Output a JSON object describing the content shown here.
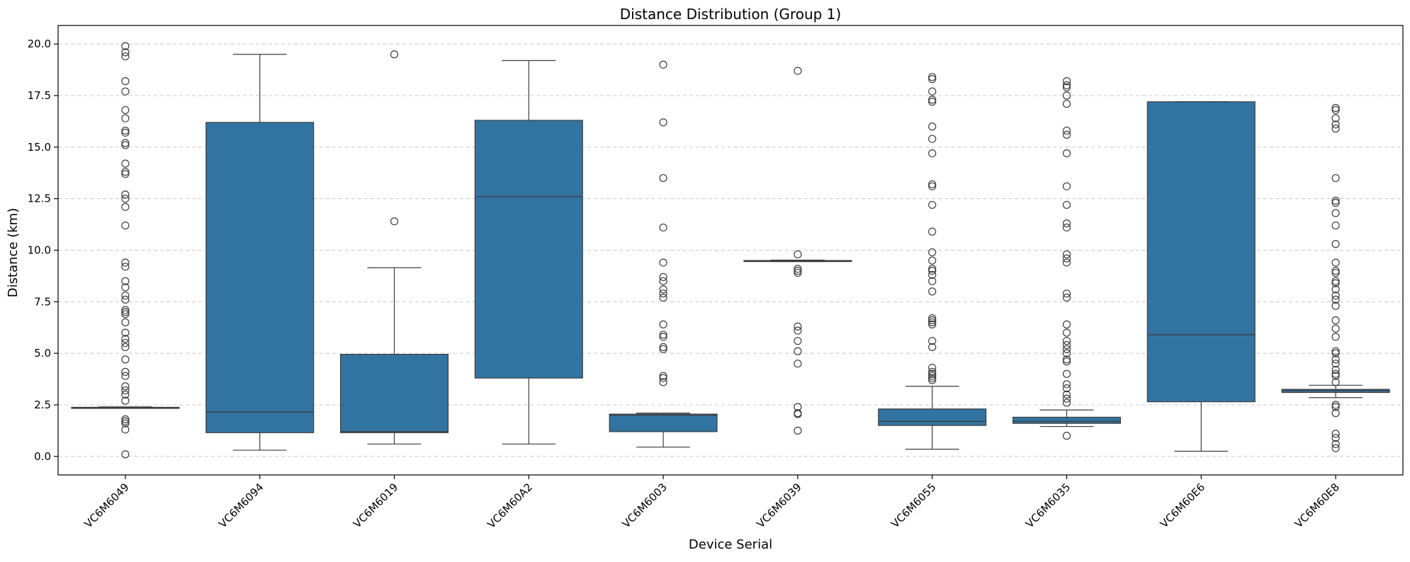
{
  "chart_data": {
    "type": "box",
    "title": "Distance Distribution (Group 1)",
    "xlabel": "Device Serial",
    "ylabel": "Distance (km)",
    "ylim": [
      -0.9,
      20.9
    ],
    "yticks": [
      0.0,
      2.5,
      5.0,
      7.5,
      10.0,
      12.5,
      15.0,
      17.5,
      20.0
    ],
    "ytick_labels": [
      "0.0",
      "2.5",
      "5.0",
      "7.5",
      "10.0",
      "12.5",
      "15.0",
      "17.5",
      "20.0"
    ],
    "grid": "horizontal dashed",
    "box_color": "#3274a1",
    "line_color": "#3d3d3d",
    "categories": [
      "VC6M6049",
      "VC6M6094",
      "VC6M6019",
      "VC6M60A2",
      "VC6M6003",
      "VC6M6039",
      "VC6M6055",
      "VC6M6035",
      "VC6M60E6",
      "VC6M60E8"
    ],
    "boxes": [
      {
        "category": "VC6M6049",
        "whisker_low": 2.35,
        "q1": 2.35,
        "median": 2.36,
        "q3": 2.38,
        "whisker_high": 2.4,
        "outliers": [
          19.9,
          19.6,
          19.4,
          18.2,
          17.7,
          16.8,
          16.4,
          15.8,
          15.7,
          15.2,
          15.1,
          14.2,
          13.8,
          13.7,
          12.7,
          12.5,
          12.1,
          11.2,
          9.4,
          9.2,
          8.5,
          8.2,
          7.8,
          7.6,
          7.1,
          7.0,
          6.9,
          6.5,
          6.0,
          5.7,
          5.5,
          5.3,
          4.7,
          4.1,
          3.9,
          3.4,
          3.2,
          3.0,
          2.7,
          1.8,
          1.7,
          1.6,
          1.3,
          0.1
        ]
      },
      {
        "category": "VC6M6094",
        "whisker_low": 0.3,
        "q1": 1.15,
        "median": 2.15,
        "q3": 16.2,
        "whisker_high": 19.5,
        "outliers": []
      },
      {
        "category": "VC6M6019",
        "whisker_low": 0.6,
        "q1": 1.15,
        "median": 1.2,
        "q3": 4.95,
        "whisker_high": 9.15,
        "outliers": [
          19.5,
          11.4
        ]
      },
      {
        "category": "VC6M60A2",
        "whisker_low": 0.6,
        "q1": 3.8,
        "median": 12.6,
        "q3": 16.3,
        "whisker_high": 19.2,
        "outliers": []
      },
      {
        "category": "VC6M6003",
        "whisker_low": 0.45,
        "q1": 1.2,
        "median": 2.0,
        "q3": 2.05,
        "whisker_high": 2.1,
        "outliers": [
          19.0,
          16.2,
          13.5,
          11.1,
          9.4,
          8.7,
          8.5,
          8.1,
          7.9,
          7.7,
          6.4,
          5.9,
          5.8,
          5.3,
          5.2,
          3.9,
          3.8,
          3.6
        ]
      },
      {
        "category": "VC6M6039",
        "whisker_low": 9.45,
        "q1": 9.47,
        "median": 9.48,
        "q3": 9.5,
        "whisker_high": 9.52,
        "outliers": [
          18.7,
          9.8,
          9.1,
          9.0,
          8.9,
          6.3,
          6.1,
          5.6,
          5.1,
          4.5,
          2.4,
          2.1,
          2.05,
          1.25
        ]
      },
      {
        "category": "VC6M6055",
        "whisker_low": 0.35,
        "q1": 1.5,
        "median": 1.7,
        "q3": 2.3,
        "whisker_high": 3.4,
        "outliers": [
          18.4,
          18.3,
          17.7,
          17.3,
          17.2,
          16.0,
          15.4,
          14.7,
          13.2,
          13.1,
          12.2,
          10.9,
          9.9,
          9.5,
          9.1,
          9.0,
          8.8,
          8.5,
          8.0,
          6.7,
          6.6,
          6.5,
          6.4,
          5.6,
          5.3,
          4.3,
          4.1,
          4.0,
          3.9,
          3.8,
          3.7
        ]
      },
      {
        "category": "VC6M6035",
        "whisker_low": 1.45,
        "q1": 1.6,
        "median": 1.7,
        "q3": 1.9,
        "whisker_high": 2.25,
        "outliers": [
          18.2,
          18.0,
          17.9,
          17.5,
          17.1,
          15.8,
          15.6,
          14.7,
          13.1,
          12.2,
          11.3,
          11.1,
          9.8,
          9.6,
          9.4,
          7.9,
          7.7,
          6.4,
          6.0,
          5.6,
          5.4,
          5.2,
          5.0,
          4.7,
          4.6,
          4.0,
          3.5,
          3.3,
          3.0,
          2.8,
          2.6,
          1.0
        ]
      },
      {
        "category": "VC6M60E6",
        "whisker_low": 0.25,
        "q1": 2.65,
        "median": 5.9,
        "q3": 17.2,
        "whisker_high": 17.2,
        "outliers": []
      },
      {
        "category": "VC6M60E8",
        "whisker_low": 2.85,
        "q1": 3.1,
        "median": 3.2,
        "q3": 3.25,
        "whisker_high": 3.45,
        "outliers": [
          16.9,
          16.8,
          16.4,
          16.1,
          15.9,
          13.5,
          12.4,
          12.3,
          11.8,
          11.2,
          10.3,
          9.4,
          9.0,
          8.9,
          8.5,
          8.4,
          8.1,
          7.8,
          7.6,
          7.3,
          6.6,
          6.2,
          5.8,
          5.1,
          5.0,
          4.7,
          4.5,
          4.2,
          4.0,
          3.9,
          3.6,
          2.5,
          2.4,
          2.1,
          1.1,
          0.9,
          0.6,
          0.4
        ]
      }
    ]
  }
}
